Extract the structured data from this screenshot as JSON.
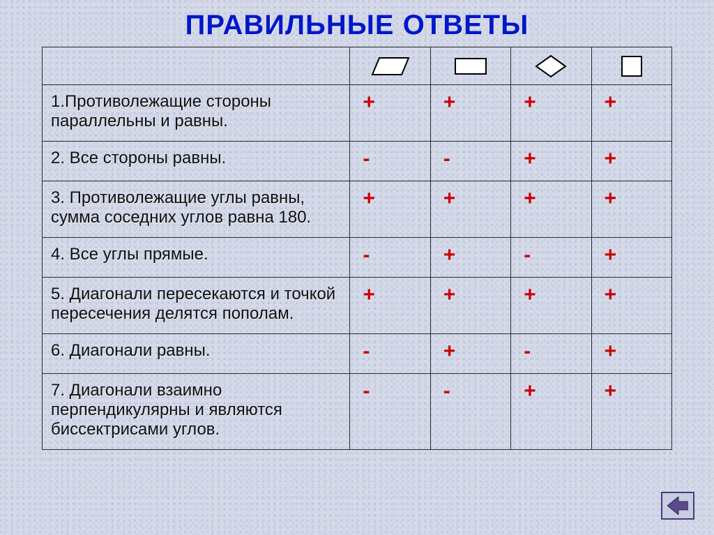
{
  "title": "ПРАВИЛЬНЫЕ    ОТВЕТЫ",
  "shapes": [
    "parallelogram",
    "rectangle",
    "rhombus",
    "square"
  ],
  "shape_stroke": "#000000",
  "shape_fill": "#ffffff",
  "plus_color": "#c80000",
  "minus_color": "#c80000",
  "title_color": "#0018c8",
  "border_color": "#2a2a2a",
  "rows": [
    {
      "label": "1.Противолежащие стороны параллельны и равны.",
      "marks": [
        "+",
        "+",
        "+",
        "+"
      ]
    },
    {
      "label": "2. Все стороны равны.",
      "marks": [
        "-",
        "-",
        "+",
        "+"
      ]
    },
    {
      "label": "3. Противолежащие углы равны, сумма соседних углов равна 180.",
      "marks": [
        "+",
        "+",
        "+",
        "+"
      ]
    },
    {
      "label": "4. Все углы прямые.",
      "marks": [
        "-",
        "+",
        "-",
        "+"
      ]
    },
    {
      "label": "5. Диагонали пересекаются и точкой пересечения делятся пополам.",
      "marks": [
        "+",
        "+",
        "+",
        "+"
      ]
    },
    {
      "label": "6. Диагонали равны.",
      "marks": [
        "-",
        "+",
        "-",
        "+"
      ]
    },
    {
      "label": "7. Диагонали взаимно перпендикулярны и являются биссектрисами углов.",
      "marks": [
        "-",
        "-",
        "+",
        "+"
      ]
    }
  ],
  "nav": {
    "arrow_color": "#4a3a7a",
    "bg": "#c9cde0"
  }
}
